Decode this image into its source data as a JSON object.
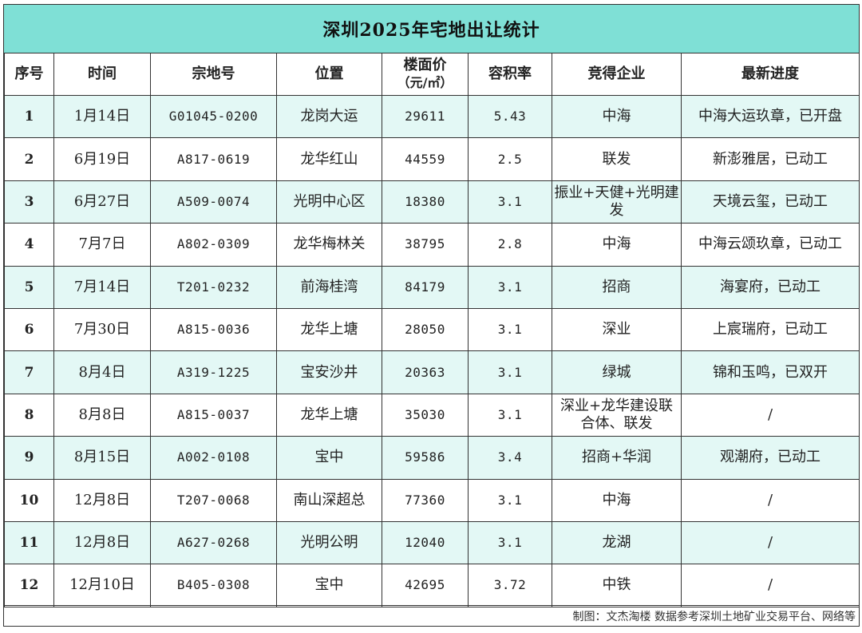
{
  "title": "深圳2025年宅地出让统计",
  "headers": {
    "seq": "序号",
    "date": "时间",
    "parcel": "宗地号",
    "location": "位置",
    "price_line1": "楼面价",
    "price_line2": "（元/㎡）",
    "far": "容积率",
    "winner": "竞得企业",
    "progress": "最新进度"
  },
  "rows": [
    {
      "seq": "1",
      "date": "1月14日",
      "parcel": "G01045-0200",
      "location": "龙岗大运",
      "price": "29611",
      "far": "5.43",
      "winner": "中海",
      "progress": "中海大运玖章，已开盘"
    },
    {
      "seq": "2",
      "date": "6月19日",
      "parcel": "A817-0619",
      "location": "龙华红山",
      "price": "44559",
      "far": "2.5",
      "winner": "联发",
      "progress": "新澎雅居，已动工"
    },
    {
      "seq": "3",
      "date": "6月27日",
      "parcel": "A509-0074",
      "location": "光明中心区",
      "price": "18380",
      "far": "3.1",
      "winner": "振业+天健+光明建发",
      "progress": "天境云玺，已动工"
    },
    {
      "seq": "4",
      "date": "7月7日",
      "parcel": "A802-0309",
      "location": "龙华梅林关",
      "price": "38795",
      "far": "2.8",
      "winner": "中海",
      "progress": "中海云颂玖章，已动工"
    },
    {
      "seq": "5",
      "date": "7月14日",
      "parcel": "T201-0232",
      "location": "前海桂湾",
      "price": "84179",
      "far": "3.1",
      "winner": "招商",
      "progress": "海宴府，已动工"
    },
    {
      "seq": "6",
      "date": "7月30日",
      "parcel": "A815-0036",
      "location": "龙华上塘",
      "price": "28050",
      "far": "3.1",
      "winner": "深业",
      "progress": "上宸瑞府，已动工"
    },
    {
      "seq": "7",
      "date": "8月4日",
      "parcel": "A319-1225",
      "location": "宝安沙井",
      "price": "20363",
      "far": "3.1",
      "winner": "绿城",
      "progress": "锦和玉鸣，已双开"
    },
    {
      "seq": "8",
      "date": "8月8日",
      "parcel": "A815-0037",
      "location": "龙华上塘",
      "price": "35030",
      "far": "3.1",
      "winner": "深业+龙华建设联合体、联发",
      "progress": "/"
    },
    {
      "seq": "9",
      "date": "8月15日",
      "parcel": "A002-0108",
      "location": "宝中",
      "price": "59586",
      "far": "3.4",
      "winner": "招商+华润",
      "progress": "观潮府，已动工"
    },
    {
      "seq": "10",
      "date": "12月8日",
      "parcel": "T207-0068",
      "location": "南山深超总",
      "price": "77360",
      "far": "3.1",
      "winner": "中海",
      "progress": "/"
    },
    {
      "seq": "11",
      "date": "12月8日",
      "parcel": "A627-0268",
      "location": "光明公明",
      "price": "12040",
      "far": "3.1",
      "winner": "龙湖",
      "progress": "/"
    },
    {
      "seq": "12",
      "date": "12月10日",
      "parcel": "B405-0308",
      "location": "宝中",
      "price": "42695",
      "far": "3.72",
      "winner": "中铁",
      "progress": "/"
    }
  ],
  "footer": "制图：文杰淘楼  数据参考深圳土地矿业交易平台、网络等",
  "colors": {
    "header_bg": "#7fe0d6",
    "alt_row_bg": "#e3f8f5",
    "border": "#333333"
  }
}
